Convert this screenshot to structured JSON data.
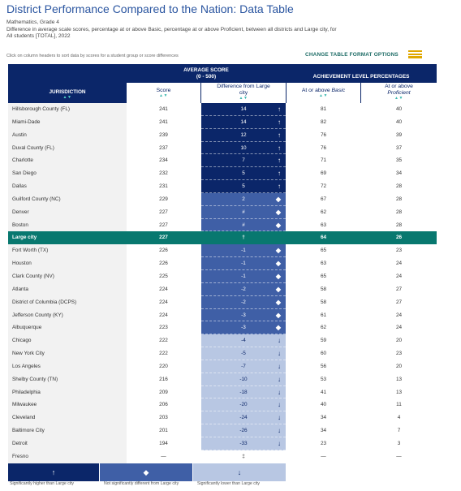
{
  "title": "District Performance Compared to the Nation: Data Table",
  "subtitle_line1": "Mathematics, Grade 4",
  "subtitle_line2": "Difference in average scale scores, percentage at or above Basic, percentage at or above Proficient, between all districts and Large city, for",
  "subtitle_line3": "All students [TOTAL], 2022",
  "hint": "Click on column headers to sort data by scores for a student group or score differences",
  "change_label": "CHANGE TABLE FORMAT OPTIONS",
  "headers": {
    "jurisdiction": "JURISDICTION",
    "avg_group": "AVERAGE SCORE",
    "avg_range": "(0 - 500)",
    "ach_group": "ACHIEVEMENT LEVEL PERCENTAGES",
    "score": "Score",
    "diff_line1": "Difference from Large",
    "diff_line2": "city",
    "basic_prefix": "At or above ",
    "basic_em": "Basic",
    "prof_line1": "At or above",
    "prof_em": "Proficient",
    "sort_glyph": "▲▼"
  },
  "colors": {
    "higher": "#0b2669",
    "notsig": "#3f5fa6",
    "lower": "#b8c7e3",
    "largecity": "#08786f"
  },
  "rows": [
    {
      "name": "Hillsborough County (FL)",
      "score": "241",
      "diff": "14",
      "sig": "higher",
      "basic": "81",
      "prof": "40"
    },
    {
      "name": "Miami-Dade",
      "score": "241",
      "diff": "14",
      "sig": "higher",
      "basic": "82",
      "prof": "40"
    },
    {
      "name": "Austin",
      "score": "239",
      "diff": "12",
      "sig": "higher",
      "basic": "76",
      "prof": "39"
    },
    {
      "name": "Duval County (FL)",
      "score": "237",
      "diff": "10",
      "sig": "higher",
      "basic": "76",
      "prof": "37"
    },
    {
      "name": "Charlotte",
      "score": "234",
      "diff": "7",
      "sig": "higher",
      "basic": "71",
      "prof": "35"
    },
    {
      "name": "San Diego",
      "score": "232",
      "diff": "5",
      "sig": "higher",
      "basic": "69",
      "prof": "34"
    },
    {
      "name": "Dallas",
      "score": "231",
      "diff": "5",
      "sig": "higher",
      "basic": "72",
      "prof": "28"
    },
    {
      "name": "Guilford County (NC)",
      "score": "229",
      "diff": "2",
      "sig": "notsig",
      "basic": "67",
      "prof": "28"
    },
    {
      "name": "Denver",
      "score": "227",
      "diff": "#",
      "sig": "notsig",
      "basic": "62",
      "prof": "28"
    },
    {
      "name": "Boston",
      "score": "227",
      "diff": "#",
      "sig": "notsig",
      "basic": "63",
      "prof": "28"
    },
    {
      "name": "Large city",
      "score": "227",
      "diff": "†",
      "sig": "largecity",
      "basic": "64",
      "prof": "26"
    },
    {
      "name": "Fort Worth (TX)",
      "score": "226",
      "diff": "-1",
      "sig": "notsig",
      "basic": "65",
      "prof": "23"
    },
    {
      "name": "Houston",
      "score": "226",
      "diff": "-1",
      "sig": "notsig",
      "basic": "63",
      "prof": "24"
    },
    {
      "name": "Clark County (NV)",
      "score": "225",
      "diff": "-1",
      "sig": "notsig",
      "basic": "65",
      "prof": "24"
    },
    {
      "name": "Atlanta",
      "score": "224",
      "diff": "-2",
      "sig": "notsig",
      "basic": "58",
      "prof": "27"
    },
    {
      "name": "District of Columbia (DCPS)",
      "score": "224",
      "diff": "-2",
      "sig": "notsig",
      "basic": "58",
      "prof": "27"
    },
    {
      "name": "Jefferson County (KY)",
      "score": "224",
      "diff": "-3",
      "sig": "notsig",
      "basic": "61",
      "prof": "24"
    },
    {
      "name": "Albuquerque",
      "score": "223",
      "diff": "-3",
      "sig": "notsig",
      "basic": "62",
      "prof": "24"
    },
    {
      "name": "Chicago",
      "score": "222",
      "diff": "-4",
      "sig": "lower",
      "basic": "59",
      "prof": "20"
    },
    {
      "name": "New York City",
      "score": "222",
      "diff": "-5",
      "sig": "lower",
      "basic": "60",
      "prof": "23"
    },
    {
      "name": "Los Angeles",
      "score": "220",
      "diff": "-7",
      "sig": "lower",
      "basic": "56",
      "prof": "20"
    },
    {
      "name": "Shelby County (TN)",
      "score": "216",
      "diff": "-10",
      "sig": "lower",
      "basic": "53",
      "prof": "13"
    },
    {
      "name": "Philadelphia",
      "score": "209",
      "diff": "-18",
      "sig": "lower",
      "basic": "41",
      "prof": "13"
    },
    {
      "name": "Milwaukee",
      "score": "206",
      "diff": "-20",
      "sig": "lower",
      "basic": "40",
      "prof": "11"
    },
    {
      "name": "Cleveland",
      "score": "203",
      "diff": "-24",
      "sig": "lower",
      "basic": "34",
      "prof": "4"
    },
    {
      "name": "Baltimore City",
      "score": "201",
      "diff": "-26",
      "sig": "lower",
      "basic": "34",
      "prof": "7"
    },
    {
      "name": "Detroit",
      "score": "194",
      "diff": "-33",
      "sig": "lower",
      "basic": "23",
      "prof": "3"
    },
    {
      "name": "Fresno",
      "score": "—",
      "diff": "‡",
      "sig": "none",
      "basic": "—",
      "prof": "—"
    }
  ],
  "legend": {
    "higher": "Significantly higher than Large city",
    "notsig": "Not significantly different from Large city",
    "lower": "Significantly lower than Large city"
  }
}
